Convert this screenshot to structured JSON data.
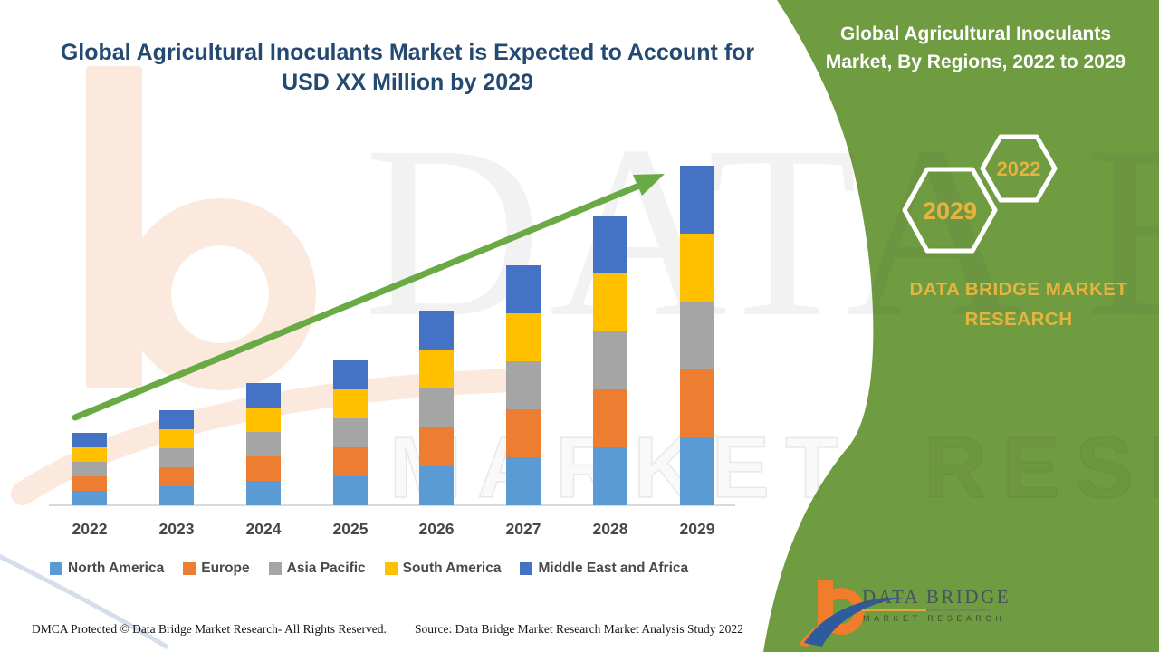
{
  "header": {
    "title_line1": "Global Agricultural Inoculants Market is Expected to Account for",
    "title_line2": "USD XX Million by 2029",
    "title_color": "#254a72"
  },
  "side_panel": {
    "heading_line1": "Global Agricultural Inoculants",
    "heading_line2": "Market, By Regions, 2022 to 2029",
    "hexagon_back_label": "2029",
    "hexagon_front_label": "2022",
    "brand_line1": "DATA BRIDGE MARKET",
    "brand_line2": "RESEARCH",
    "panel_color": "#6f9b41",
    "accent_text_color": "#e5b43e"
  },
  "chart_data": {
    "type": "bar",
    "stacked": true,
    "title": "Global Agricultural Inoculants Market is Expected to Account for USD XX Million by 2029",
    "xlabel": "",
    "ylabel": "",
    "y_axis_shown": false,
    "grid": false,
    "legend_position": "bottom",
    "units_note": "USD XX Million (values illustrative, read from bar pixel heights; five regions shown as equal stacked shares each year)",
    "categories": [
      "2022",
      "2023",
      "2024",
      "2025",
      "2026",
      "2027",
      "2028",
      "2029"
    ],
    "stack_totals": [
      16,
      21,
      27,
      32,
      43,
      53,
      64,
      75
    ],
    "series": [
      {
        "name": "North America",
        "color": "#5B9BD5",
        "values": [
          3.2,
          4.2,
          5.4,
          6.4,
          8.6,
          10.6,
          12.8,
          15
        ]
      },
      {
        "name": "Europe",
        "color": "#ED7D31",
        "values": [
          3.2,
          4.2,
          5.4,
          6.4,
          8.6,
          10.6,
          12.8,
          15
        ]
      },
      {
        "name": "Asia Pacific",
        "color": "#A5A5A5",
        "values": [
          3.2,
          4.2,
          5.4,
          6.4,
          8.6,
          10.6,
          12.8,
          15
        ]
      },
      {
        "name": "South America",
        "color": "#FFC000",
        "values": [
          3.2,
          4.2,
          5.4,
          6.4,
          8.6,
          10.6,
          12.8,
          15
        ]
      },
      {
        "name": "Middle East and Africa",
        "color": "#4472C4",
        "values": [
          3.2,
          4.2,
          5.4,
          6.4,
          8.6,
          10.6,
          12.8,
          15
        ]
      }
    ],
    "trend_arrow": {
      "shown": true,
      "color": "#6aaa44",
      "direction": "up-right"
    }
  },
  "watermarks": {
    "big_text": "DATA BRIDGE",
    "outline_text": "MARKET RESEARCH"
  },
  "logo": {
    "title": "DATA BRIDGE",
    "subtitle": "MARKET RESEARCH"
  },
  "footer": {
    "dmca": "DMCA Protected © Data Bridge Market Research- All Rights Reserved.",
    "source": "Source: Data Bridge Market Research Market Analysis Study 2022"
  }
}
